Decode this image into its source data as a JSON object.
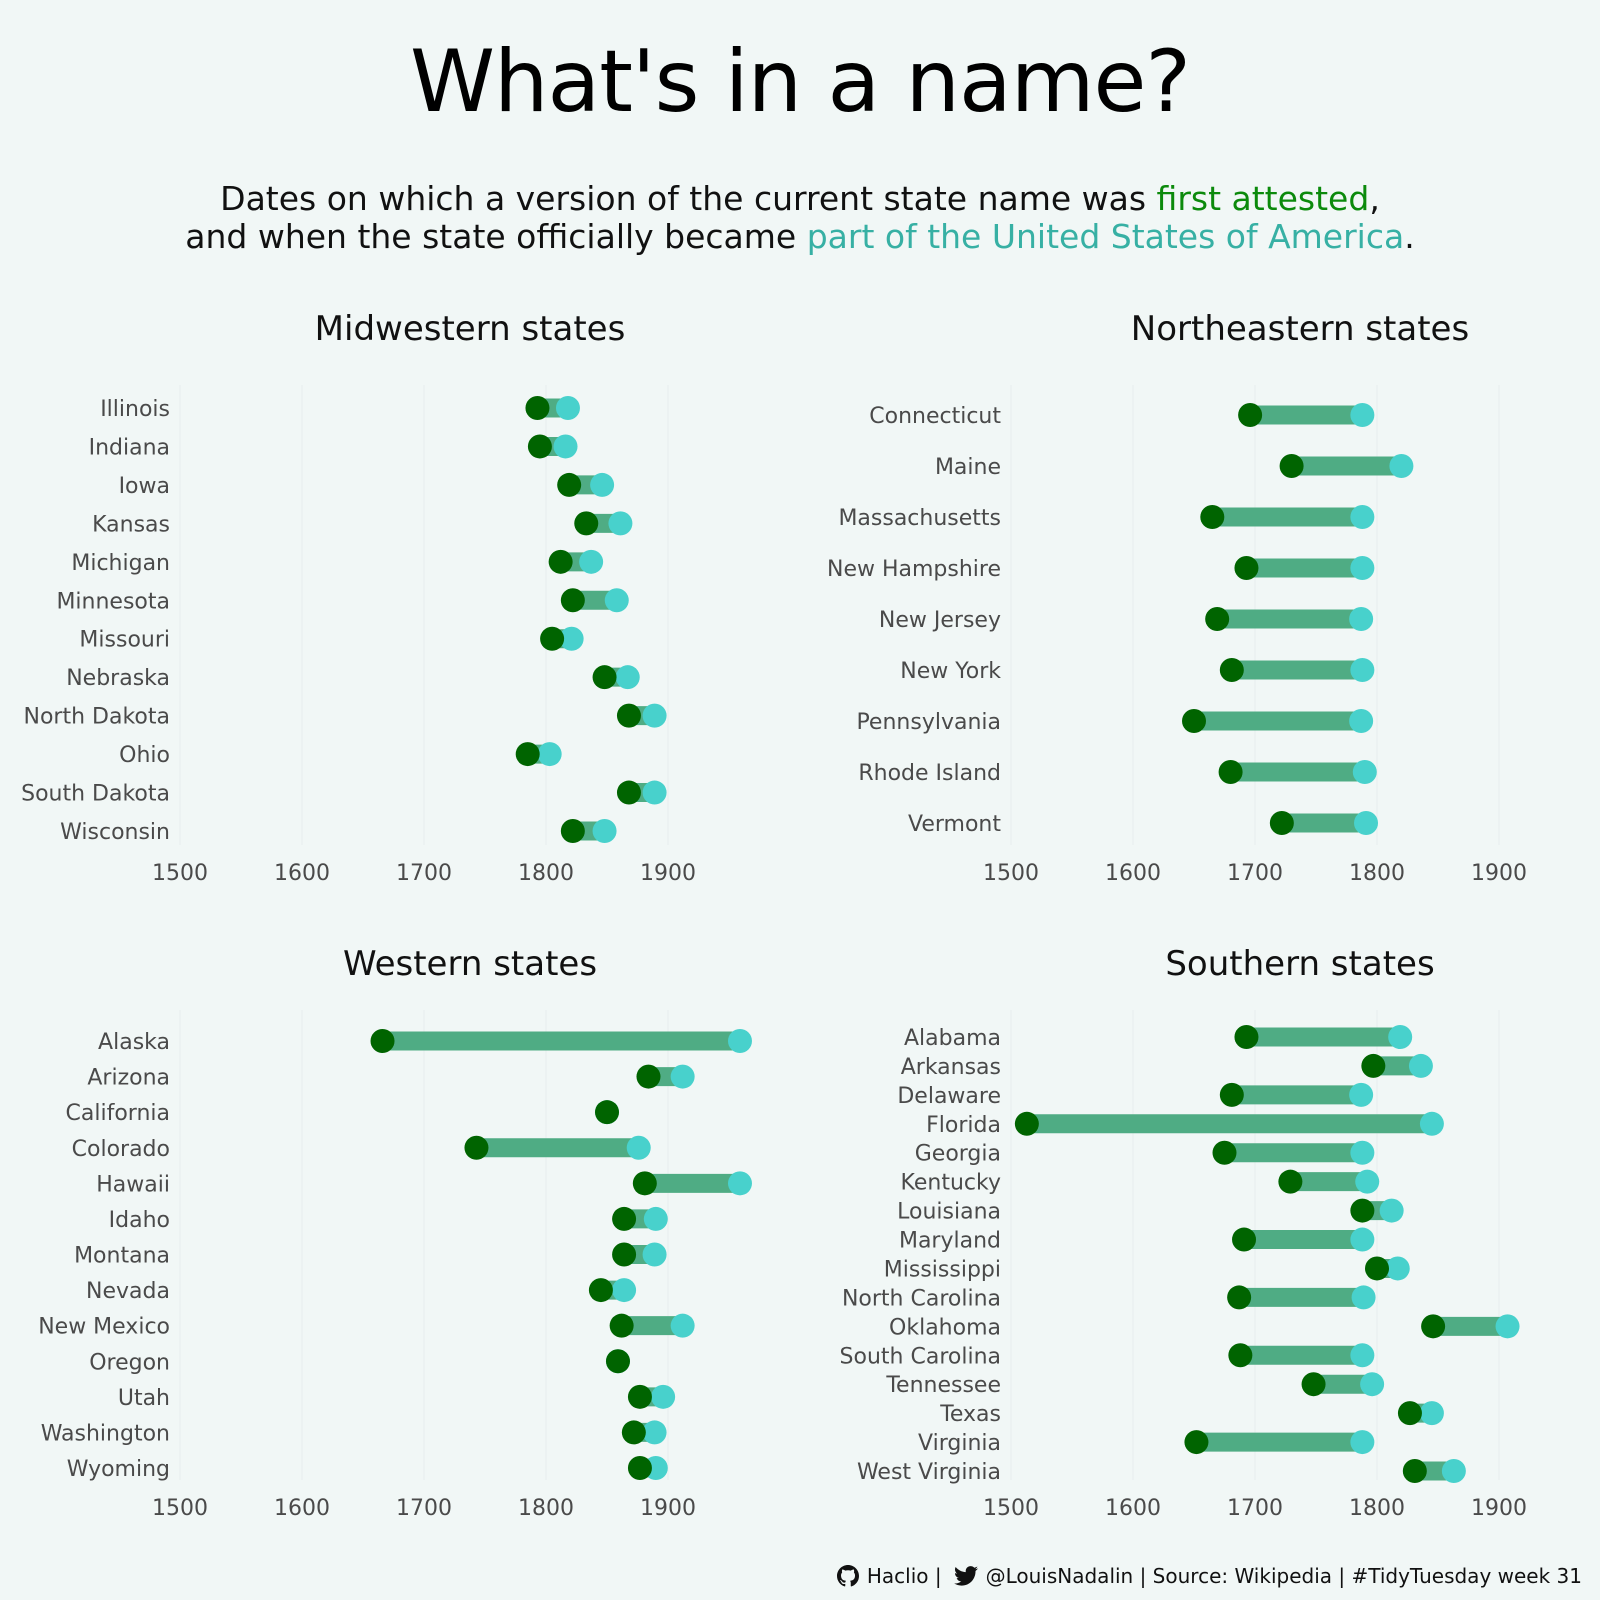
{
  "title": "What's in a name?",
  "subtitle": {
    "line1_prefix": "Dates on which a version of the current state name was ",
    "first_attested": "first attested",
    "line1_suffix": ",",
    "line2_prefix": "and when the state officially became ",
    "part_of_usa": "part of the United States of America",
    "line2_suffix": "."
  },
  "colors": {
    "first_attested": "#006400",
    "admitted": "#48d1cc",
    "bar": "#4fac84",
    "background": "#f1f7f6"
  },
  "footer": {
    "github_icon": "github-icon",
    "github": "Haclio |",
    "twitter_icon": "twitter-icon",
    "twitter": "@LouisNadalin | Source: Wikipedia | #TidyTuesday week 31"
  },
  "chart_data": [
    {
      "type": "dumbbell",
      "title": "Midwestern states",
      "xlim": [
        1500,
        1950
      ],
      "xticks": [
        1500,
        1600,
        1700,
        1800,
        1900
      ],
      "grid": true,
      "series": [
        {
          "name": "first attested",
          "color": "#006400"
        },
        {
          "name": "part of the United States of America",
          "color": "#48d1cc"
        }
      ],
      "states": [
        {
          "name": "Illinois",
          "first": 1793,
          "admitted": 1818
        },
        {
          "name": "Indiana",
          "first": 1795,
          "admitted": 1816
        },
        {
          "name": "Iowa",
          "first": 1819,
          "admitted": 1846
        },
        {
          "name": "Kansas",
          "first": 1833,
          "admitted": 1861
        },
        {
          "name": "Michigan",
          "first": 1812,
          "admitted": 1837
        },
        {
          "name": "Minnesota",
          "first": 1822,
          "admitted": 1858
        },
        {
          "name": "Missouri",
          "first": 1805,
          "admitted": 1821
        },
        {
          "name": "Nebraska",
          "first": 1848,
          "admitted": 1867
        },
        {
          "name": "North Dakota",
          "first": 1868,
          "admitted": 1889
        },
        {
          "name": "Ohio",
          "first": 1785,
          "admitted": 1803
        },
        {
          "name": "South Dakota",
          "first": 1868,
          "admitted": 1889
        },
        {
          "name": "Wisconsin",
          "first": 1822,
          "admitted": 1848
        }
      ]
    },
    {
      "type": "dumbbell",
      "title": "Northeastern states",
      "xlim": [
        1500,
        1950
      ],
      "xticks": [
        1500,
        1600,
        1700,
        1800,
        1900
      ],
      "grid": true,
      "series": [
        {
          "name": "first attested",
          "color": "#006400"
        },
        {
          "name": "part of the United States of America",
          "color": "#48d1cc"
        }
      ],
      "states": [
        {
          "name": "Connecticut",
          "first": 1696,
          "admitted": 1788
        },
        {
          "name": "Maine",
          "first": 1730,
          "admitted": 1820
        },
        {
          "name": "Massachusetts",
          "first": 1665,
          "admitted": 1788
        },
        {
          "name": "New Hampshire",
          "first": 1693,
          "admitted": 1788
        },
        {
          "name": "New Jersey",
          "first": 1669,
          "admitted": 1787
        },
        {
          "name": "New York",
          "first": 1681,
          "admitted": 1788
        },
        {
          "name": "Pennsylvania",
          "first": 1650,
          "admitted": 1787
        },
        {
          "name": "Rhode Island",
          "first": 1680,
          "admitted": 1790
        },
        {
          "name": "Vermont",
          "first": 1722,
          "admitted": 1791
        }
      ]
    },
    {
      "type": "dumbbell",
      "title": "Western states",
      "xlim": [
        1500,
        1950
      ],
      "xticks": [
        1500,
        1600,
        1700,
        1800,
        1900
      ],
      "grid": true,
      "series": [
        {
          "name": "first attested",
          "color": "#006400"
        },
        {
          "name": "part of the United States of America",
          "color": "#48d1cc"
        }
      ],
      "states": [
        {
          "name": "Alaska",
          "first": 1666,
          "admitted": 1959
        },
        {
          "name": "Arizona",
          "first": 1884,
          "admitted": 1912
        },
        {
          "name": "California",
          "first": 1850,
          "admitted": 1850
        },
        {
          "name": "Colorado",
          "first": 1743,
          "admitted": 1876
        },
        {
          "name": "Hawaii",
          "first": 1881,
          "admitted": 1959
        },
        {
          "name": "Idaho",
          "first": 1864,
          "admitted": 1890
        },
        {
          "name": "Montana",
          "first": 1864,
          "admitted": 1889
        },
        {
          "name": "Nevada",
          "first": 1845,
          "admitted": 1864
        },
        {
          "name": "New Mexico",
          "first": 1862,
          "admitted": 1912
        },
        {
          "name": "Oregon",
          "first": 1859,
          "admitted": 1859
        },
        {
          "name": "Utah",
          "first": 1877,
          "admitted": 1896
        },
        {
          "name": "Washington",
          "first": 1872,
          "admitted": 1889
        },
        {
          "name": "Wyoming",
          "first": 1877,
          "admitted": 1890
        }
      ]
    },
    {
      "type": "dumbbell",
      "title": "Southern states",
      "xlim": [
        1500,
        1950
      ],
      "xticks": [
        1500,
        1600,
        1700,
        1800,
        1900
      ],
      "grid": true,
      "series": [
        {
          "name": "first attested",
          "color": "#006400"
        },
        {
          "name": "part of the United States of America",
          "color": "#48d1cc"
        }
      ],
      "states": [
        {
          "name": "Alabama",
          "first": 1693,
          "admitted": 1819
        },
        {
          "name": "Arkansas",
          "first": 1797,
          "admitted": 1836
        },
        {
          "name": "Delaware",
          "first": 1681,
          "admitted": 1787
        },
        {
          "name": "Florida",
          "first": 1513,
          "admitted": 1845
        },
        {
          "name": "Georgia",
          "first": 1675,
          "admitted": 1788
        },
        {
          "name": "Kentucky",
          "first": 1729,
          "admitted": 1792
        },
        {
          "name": "Louisiana",
          "first": 1788,
          "admitted": 1812
        },
        {
          "name": "Maryland",
          "first": 1691,
          "admitted": 1788
        },
        {
          "name": "Mississippi",
          "first": 1800,
          "admitted": 1817
        },
        {
          "name": "North Carolina",
          "first": 1687,
          "admitted": 1789
        },
        {
          "name": "Oklahoma",
          "first": 1846,
          "admitted": 1907
        },
        {
          "name": "South Carolina",
          "first": 1688,
          "admitted": 1788
        },
        {
          "name": "Tennessee",
          "first": 1748,
          "admitted": 1796
        },
        {
          "name": "Texas",
          "first": 1827,
          "admitted": 1845
        },
        {
          "name": "Virginia",
          "first": 1652,
          "admitted": 1788
        },
        {
          "name": "West Virginia",
          "first": 1831,
          "admitted": 1863
        }
      ]
    }
  ]
}
